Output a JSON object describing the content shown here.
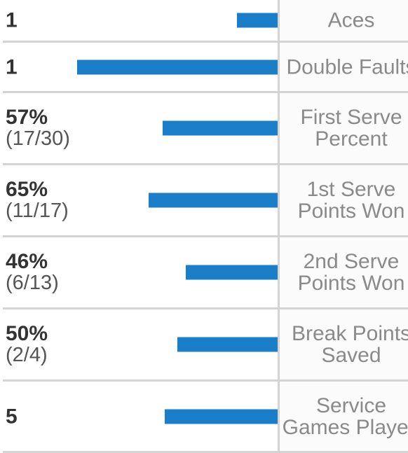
{
  "stats": [
    {
      "value": "1",
      "detail": "",
      "label1": "Aces",
      "label2": "",
      "bar_fraction": 0.2
    },
    {
      "value": "1",
      "detail": "",
      "label1": "Double Faults",
      "label2": "",
      "bar_fraction": 0.98
    },
    {
      "value": "57%",
      "detail": "(17/30)",
      "label1": "First Serve",
      "label2": "Percent",
      "bar_fraction": 0.56
    },
    {
      "value": "65%",
      "detail": "(11/17)",
      "label1": "1st Serve",
      "label2": "Points Won",
      "bar_fraction": 0.63
    },
    {
      "value": "46%",
      "detail": "(6/13)",
      "label1": "2nd Serve",
      "label2": "Points Won",
      "bar_fraction": 0.45
    },
    {
      "value": "50%",
      "detail": "(2/4)",
      "label1": "Break Points",
      "label2": "Saved",
      "bar_fraction": 0.49
    },
    {
      "value": "5",
      "detail": "",
      "label1": "Service",
      "label2": "Games Played",
      "bar_fraction": 0.55
    }
  ],
  "colors": {
    "bar": "#1a7fc8",
    "divider": "#d4d4d4",
    "label": "#8a8a8a"
  }
}
